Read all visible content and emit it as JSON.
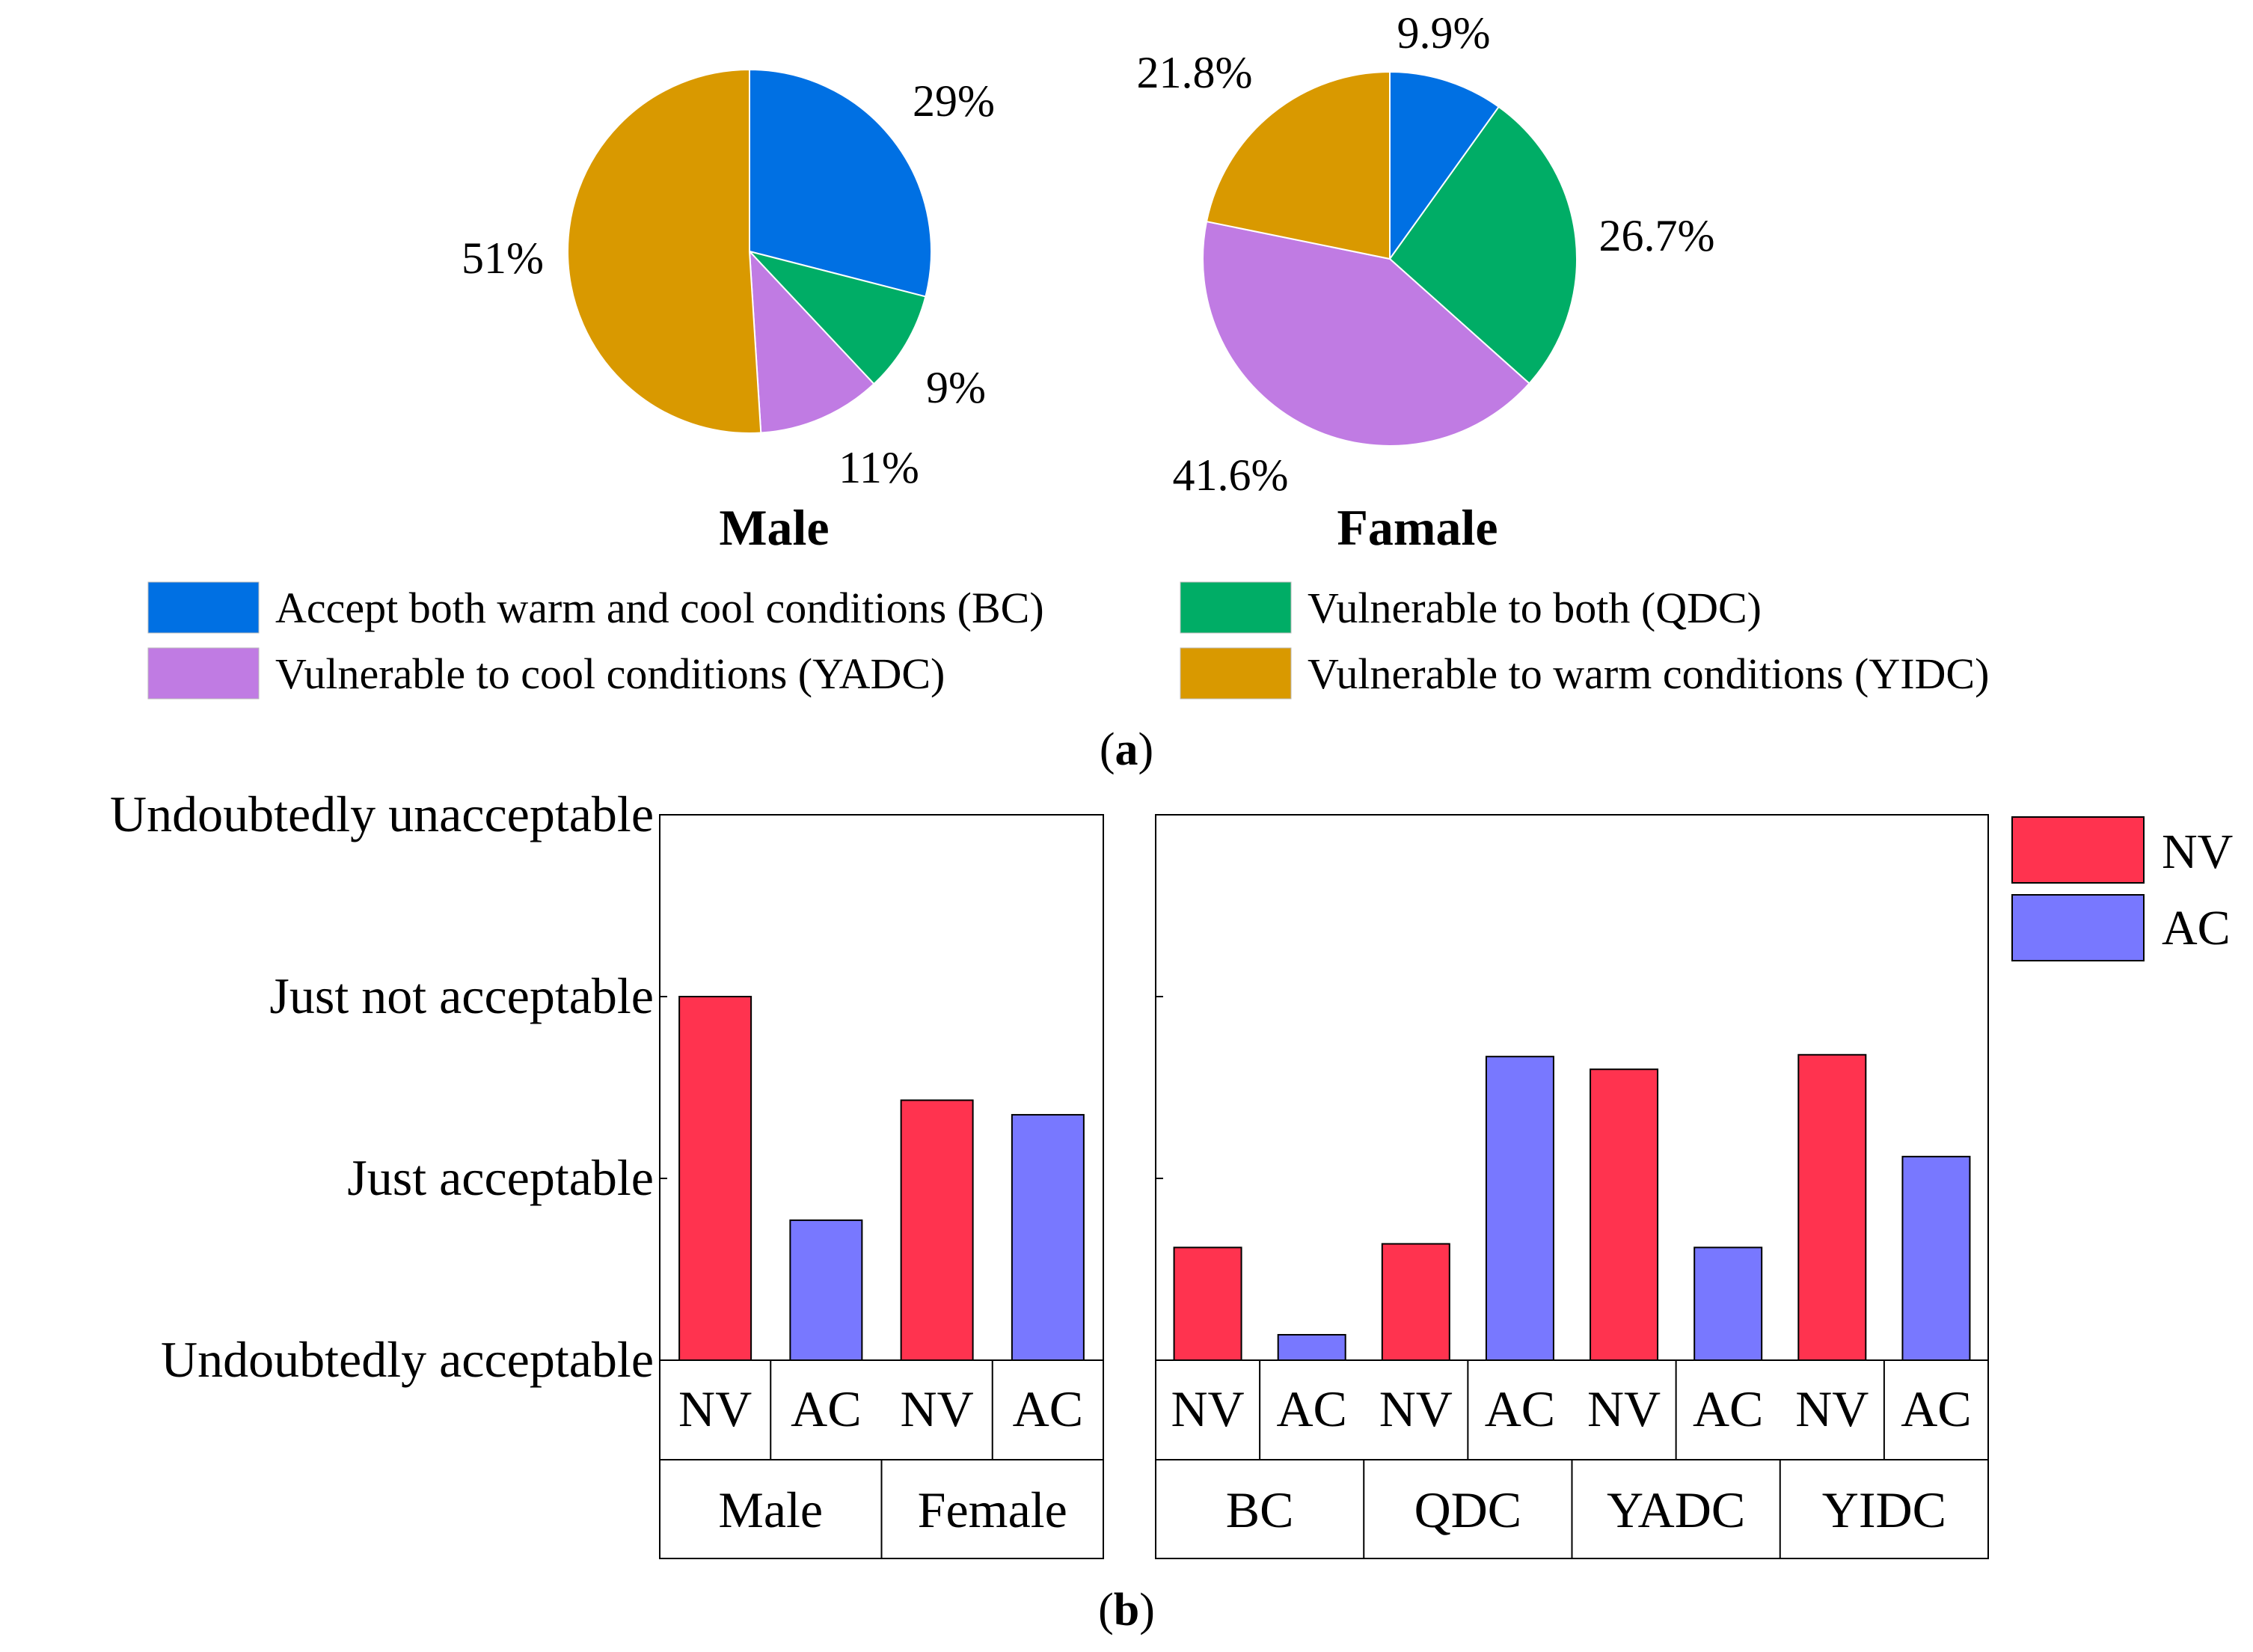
{
  "colors": {
    "BC": "#0070e3",
    "QDC": "#00ad66",
    "YADC": "#c07be3",
    "YIDC": "#d99900",
    "NV": "#ff334f",
    "AC": "#7878ff"
  },
  "panel_a_label": "(a)",
  "panel_b_label": "(b)",
  "legend_a": [
    {
      "key": "BC",
      "label": "Accept both warm and cool conditions (BC)"
    },
    {
      "key": "QDC",
      "label": "Vulnerable to both (QDC)"
    },
    {
      "key": "YADC",
      "label": "Vulnerable to cool conditions (YADC)"
    },
    {
      "key": "YIDC",
      "label": "Vulnerable to warm conditions (YIDC)"
    }
  ],
  "legend_b": [
    {
      "key": "NV",
      "label": "NV"
    },
    {
      "key": "AC",
      "label": "AC"
    }
  ],
  "chart_data": [
    {
      "type": "pie",
      "title": "Male",
      "slices": [
        {
          "key": "BC",
          "value": 29,
          "label": "29%"
        },
        {
          "key": "QDC",
          "value": 9,
          "label": "9%"
        },
        {
          "key": "YADC",
          "value": 11,
          "label": "11%"
        },
        {
          "key": "YIDC",
          "value": 51,
          "label": "51%"
        }
      ]
    },
    {
      "type": "pie",
      "title": "Famale",
      "slices": [
        {
          "key": "BC",
          "value": 9.9,
          "label": "9.9%"
        },
        {
          "key": "QDC",
          "value": 26.7,
          "label": "26.7%"
        },
        {
          "key": "YADC",
          "value": 41.6,
          "label": "41.6%"
        },
        {
          "key": "YIDC",
          "value": 21.8,
          "label": "21.8%"
        }
      ]
    },
    {
      "type": "bar",
      "ylim": [
        0,
        3
      ],
      "yticks": [
        {
          "value": 0,
          "label": "Undoubtedly acceptable"
        },
        {
          "value": 1,
          "label": "Just acceptable"
        },
        {
          "value": 2,
          "label": "Just not acceptable"
        },
        {
          "value": 3,
          "label": "Undoubtedly unacceptable"
        }
      ],
      "series": [
        "NV",
        "AC"
      ],
      "groups": [
        {
          "name": "Male",
          "values": [
            2.0,
            0.77
          ]
        },
        {
          "name": "Female",
          "values": [
            1.43,
            1.35
          ]
        }
      ]
    },
    {
      "type": "bar",
      "ylim": [
        0,
        3
      ],
      "series": [
        "NV",
        "AC"
      ],
      "groups": [
        {
          "name": "BC",
          "values": [
            0.62,
            0.14
          ]
        },
        {
          "name": "QDC",
          "values": [
            0.64,
            1.67
          ]
        },
        {
          "name": "YADC",
          "values": [
            1.6,
            0.62
          ]
        },
        {
          "name": "YIDC",
          "values": [
            1.68,
            1.12
          ]
        }
      ]
    }
  ]
}
